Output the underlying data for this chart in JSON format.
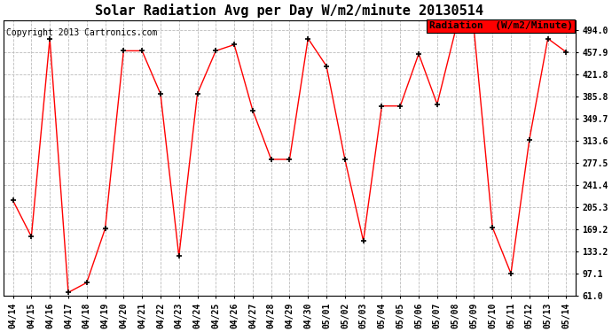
{
  "title": "Solar Radiation Avg per Day W/m2/minute 20130514",
  "copyright": "Copyright 2013 Cartronics.com",
  "legend_label": "Radiation  (W/m2/Minute)",
  "background_color": "#ffffff",
  "plot_bg_color": "#ffffff",
  "line_color": "red",
  "marker_color": "black",
  "grid_color": "#bbbbbb",
  "dates": [
    "04/14",
    "04/15",
    "04/16",
    "04/17",
    "04/18",
    "04/19",
    "04/20",
    "04/21",
    "04/22",
    "04/23",
    "04/24",
    "04/25",
    "04/26",
    "04/27",
    "04/28",
    "04/29",
    "04/30",
    "05/01",
    "05/02",
    "05/03",
    "05/04",
    "05/05",
    "05/06",
    "05/07",
    "05/08",
    "05/09",
    "05/10",
    "05/11",
    "05/12",
    "05/13",
    "05/14"
  ],
  "values": [
    216.0,
    157.0,
    480.0,
    66.0,
    82.0,
    170.0,
    460.0,
    460.0,
    390.0,
    125.0,
    390.0,
    460.0,
    470.0,
    363.0,
    283.0,
    283.0,
    480.0,
    435.0,
    283.0,
    150.0,
    370.0,
    370.0,
    455.0,
    373.0,
    494.0,
    494.0,
    172.0,
    97.0,
    315.0,
    480.0,
    457.9
  ],
  "yticks": [
    61.0,
    97.1,
    133.2,
    169.2,
    205.3,
    241.4,
    277.5,
    313.6,
    349.7,
    385.8,
    421.8,
    457.9,
    494.0
  ],
  "ylim": [
    61.0,
    510.0
  ],
  "title_fontsize": 11,
  "tick_fontsize": 7,
  "legend_fontsize": 8,
  "copyright_fontsize": 7
}
